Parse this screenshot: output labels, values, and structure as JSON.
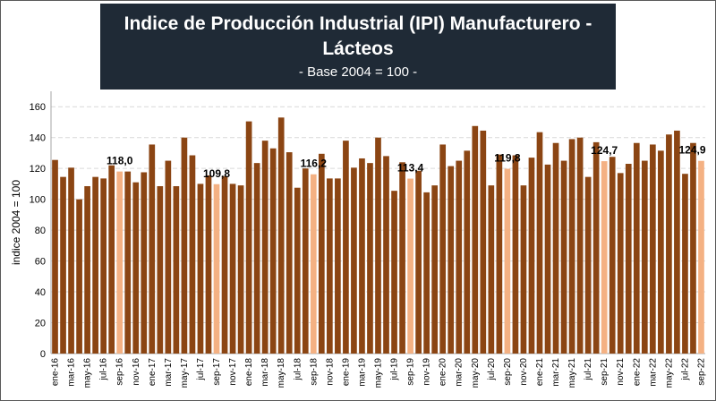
{
  "colors": {
    "background": "#ffffff",
    "title_box": "#1f2a36",
    "bar": "#8b4513",
    "highlight_bar": "#f4b183",
    "grid": "#d9d9d9"
  },
  "header": {
    "title": "Indice de Producción Industrial (IPI) Manufacturero - Lácteos",
    "subtitle": "- Base 2004 = 100 -"
  },
  "chart_data": {
    "type": "bar",
    "ylabel": "indice 2004 = 100",
    "xlabel": "",
    "ylim": [
      0,
      170
    ],
    "yticks": [
      0,
      20,
      40,
      60,
      80,
      100,
      120,
      140,
      160
    ],
    "grid": true,
    "x_tick_labels": [
      "ene-16",
      "mar-16",
      "may-16",
      "jul-16",
      "sep-16",
      "nov-16",
      "ene-17",
      "mar-17",
      "may-17",
      "jul-17",
      "sep-17",
      "nov-17",
      "ene-18",
      "mar-18",
      "may-18",
      "jul-18",
      "sep-18",
      "nov-18",
      "ene-19",
      "mar-19",
      "may-19",
      "jul-19",
      "sep-19",
      "nov-19",
      "ene-20",
      "mar-20",
      "may-20",
      "jul-20",
      "sep-20",
      "nov-20",
      "ene-21",
      "mar-21",
      "may-21",
      "jul-21",
      "sep-21",
      "nov-21",
      "ene-22",
      "mar-22",
      "may-22",
      "jul-22",
      "sep-22"
    ],
    "categories": [
      "ene-16",
      "feb-16",
      "mar-16",
      "abr-16",
      "may-16",
      "jun-16",
      "jul-16",
      "ago-16",
      "sep-16",
      "oct-16",
      "nov-16",
      "dic-16",
      "ene-17",
      "feb-17",
      "mar-17",
      "abr-17",
      "may-17",
      "jun-17",
      "jul-17",
      "ago-17",
      "sep-17",
      "oct-17",
      "nov-17",
      "dic-17",
      "ene-18",
      "feb-18",
      "mar-18",
      "abr-18",
      "may-18",
      "jun-18",
      "jul-18",
      "ago-18",
      "sep-18",
      "oct-18",
      "nov-18",
      "dic-18",
      "ene-19",
      "feb-19",
      "mar-19",
      "abr-19",
      "may-19",
      "jun-19",
      "jul-19",
      "ago-19",
      "sep-19",
      "oct-19",
      "nov-19",
      "dic-19",
      "ene-20",
      "feb-20",
      "mar-20",
      "abr-20",
      "may-20",
      "jun-20",
      "jul-20",
      "ago-20",
      "sep-20",
      "oct-20",
      "nov-20",
      "dic-20",
      "ene-21",
      "feb-21",
      "mar-21",
      "abr-21",
      "may-21",
      "jun-21",
      "jul-21",
      "ago-21",
      "sep-21",
      "oct-21",
      "nov-21",
      "dic-21",
      "ene-22",
      "feb-22",
      "mar-22",
      "abr-22",
      "may-22",
      "jun-22",
      "jul-22",
      "ago-22",
      "sep-22"
    ],
    "values": [
      125.5,
      114.5,
      120.5,
      100,
      108.5,
      114.5,
      113.5,
      122,
      118.0,
      118,
      111,
      117.5,
      135.5,
      108.5,
      125,
      108.5,
      140,
      128.5,
      110,
      115.5,
      109.8,
      115,
      110,
      109,
      150.5,
      123.5,
      138,
      133,
      153,
      130.5,
      107.5,
      120,
      116.2,
      129.5,
      113.5,
      113.5,
      138,
      120.5,
      126.5,
      123.5,
      140,
      128,
      105.5,
      124,
      113.4,
      118.5,
      104.5,
      109,
      135.5,
      121.5,
      125,
      131.5,
      147.5,
      144.5,
      109,
      129,
      119.8,
      128.5,
      109,
      127,
      143.5,
      122.5,
      136.5,
      125,
      139,
      140,
      114.5,
      137,
      124.7,
      127.5,
      117,
      123,
      136.5,
      125,
      135.5,
      131.5,
      142,
      144.5,
      116.5,
      136.5,
      124.9
    ],
    "highlighted_categories": [
      "sep-16",
      "sep-17",
      "sep-18",
      "sep-19",
      "sep-20",
      "sep-21",
      "sep-22"
    ],
    "data_labels": [
      {
        "category": "sep-16",
        "text": "118,0"
      },
      {
        "category": "sep-17",
        "text": "109,8"
      },
      {
        "category": "sep-18",
        "text": "116,2"
      },
      {
        "category": "sep-19",
        "text": "113,4"
      },
      {
        "category": "sep-20",
        "text": "119,8"
      },
      {
        "category": "sep-21",
        "text": "124,7"
      },
      {
        "category": "sep-22",
        "text": "124,9"
      }
    ]
  }
}
